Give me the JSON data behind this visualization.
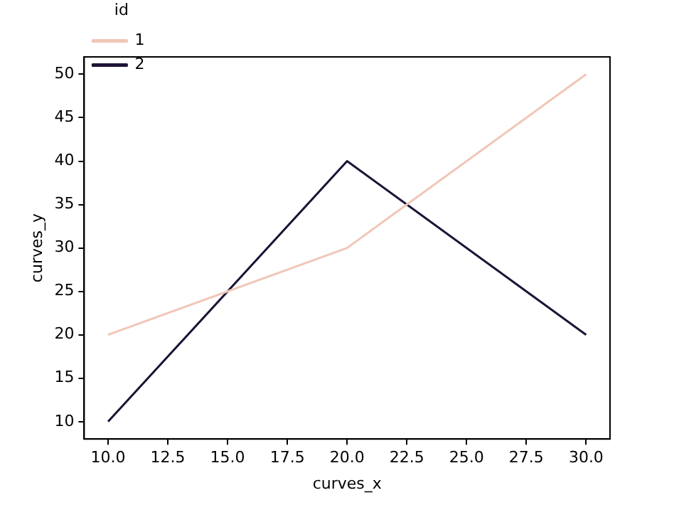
{
  "chart_data": {
    "type": "line",
    "xlabel": "curves_x",
    "ylabel": "curves_y",
    "legend_title": "id",
    "legend": "top left",
    "grid": false,
    "marker": "none",
    "line_style": "solid",
    "xlim": [
      9,
      31
    ],
    "ylim": [
      8,
      52
    ],
    "xticks": [
      {
        "value": 10,
        "label": "10.0"
      },
      {
        "value": 12.5,
        "label": "12.5"
      },
      {
        "value": 15,
        "label": "15.0"
      },
      {
        "value": 17.5,
        "label": "17.5"
      },
      {
        "value": 20,
        "label": "20.0"
      },
      {
        "value": 22.5,
        "label": "22.5"
      },
      {
        "value": 25,
        "label": "25.0"
      },
      {
        "value": 27.5,
        "label": "27.5"
      },
      {
        "value": 30,
        "label": "30.0"
      }
    ],
    "yticks": [
      10,
      15,
      20,
      25,
      30,
      35,
      40,
      45,
      50
    ],
    "series": [
      {
        "name": "1",
        "color": "#f0c7b7",
        "x": [
          10,
          20,
          30
        ],
        "values": [
          20,
          30,
          50
        ]
      },
      {
        "name": "2",
        "color": "#1c1336",
        "x": [
          10,
          20,
          30
        ],
        "values": [
          10,
          40,
          20
        ]
      }
    ]
  }
}
